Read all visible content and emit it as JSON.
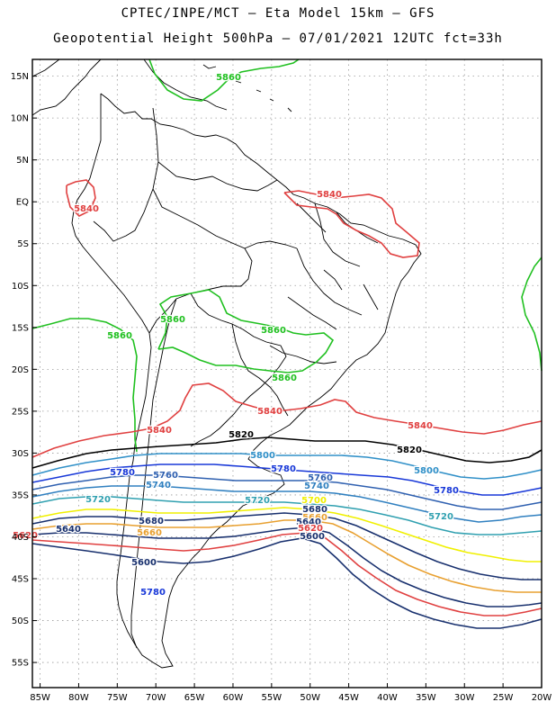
{
  "title_line1": "CPTEC/INPE/MCT –  Eta Model 15km – GFS",
  "title_line2": "Geopotential Height 500hPa – 07/01/2021 12UTC fct=33h",
  "map_data": {
    "lon_range": [
      -86,
      -20
    ],
    "lat_range": [
      -58,
      17
    ],
    "lat_ticks": [
      "15N",
      "10N",
      "5N",
      "EQ",
      "5S",
      "10S",
      "15S",
      "20S",
      "25S",
      "30S",
      "35S",
      "40S",
      "45S",
      "50S",
      "55S"
    ],
    "lon_ticks": [
      "85W",
      "80W",
      "75W",
      "70W",
      "65W",
      "60W",
      "55W",
      "50W",
      "45W",
      "40W",
      "35W",
      "30W",
      "25W",
      "20W"
    ],
    "contours": [
      {
        "level": 5620,
        "color": "#e04040"
      },
      {
        "level": 5640,
        "color": "#18306e"
      },
      {
        "level": 5660,
        "color": "#e8a030"
      },
      {
        "level": 5700,
        "color": "#f0f000"
      },
      {
        "level": 5720,
        "color": "#30a0b0"
      },
      {
        "level": 5740,
        "color": "#3080c0"
      },
      {
        "level": 5760,
        "color": "#2f60b0"
      },
      {
        "level": 5780,
        "color": "#1838d8"
      },
      {
        "level": 5800,
        "color": "#3090c8"
      },
      {
        "level": 5820,
        "color": "#000000"
      },
      {
        "level": 5840,
        "color": "#e04040"
      },
      {
        "level": 5860,
        "color": "#20c020"
      }
    ],
    "contour_labels": [
      {
        "text": "5860",
        "color": "#20c020"
      },
      {
        "text": "5860",
        "color": "#20c020"
      },
      {
        "text": "5860",
        "color": "#20c020"
      },
      {
        "text": "5860",
        "color": "#20c020"
      },
      {
        "text": "5860",
        "color": "#20c020"
      },
      {
        "text": "5840",
        "color": "#e04040"
      },
      {
        "text": "5840",
        "color": "#e04040"
      },
      {
        "text": "5840",
        "color": "#e04040"
      },
      {
        "text": "5840",
        "color": "#e04040"
      },
      {
        "text": "5840",
        "color": "#e04040"
      },
      {
        "text": "5820",
        "color": "#000000"
      },
      {
        "text": "5820",
        "color": "#000000"
      },
      {
        "text": "5800",
        "color": "#3090c8"
      },
      {
        "text": "5800",
        "color": "#3090c8"
      },
      {
        "text": "5780",
        "color": "#1838d8"
      },
      {
        "text": "5780",
        "color": "#1838d8"
      },
      {
        "text": "5780",
        "color": "#1838d8"
      },
      {
        "text": "5780",
        "color": "#1838d8"
      },
      {
        "text": "5760",
        "color": "#2f60b0"
      },
      {
        "text": "5760",
        "color": "#2f60b0"
      },
      {
        "text": "5740",
        "color": "#3080c0"
      },
      {
        "text": "5740",
        "color": "#3080c0"
      },
      {
        "text": "5720",
        "color": "#30a0b0"
      },
      {
        "text": "5720",
        "color": "#30a0b0"
      },
      {
        "text": "5720",
        "color": "#30a0b0"
      },
      {
        "text": "5700",
        "color": "#f0f000"
      },
      {
        "text": "5680",
        "color": "#18306e"
      },
      {
        "text": "5680",
        "color": "#18306e"
      },
      {
        "text": "5660",
        "color": "#e8a030"
      },
      {
        "text": "5660",
        "color": "#e8a030"
      },
      {
        "text": "5640",
        "color": "#18306e"
      },
      {
        "text": "5640",
        "color": "#18306e"
      },
      {
        "text": "5620",
        "color": "#e04040"
      },
      {
        "text": "5620",
        "color": "#e04040"
      },
      {
        "text": "5600",
        "color": "#18306e"
      },
      {
        "text": "5600",
        "color": "#18306e"
      }
    ]
  }
}
